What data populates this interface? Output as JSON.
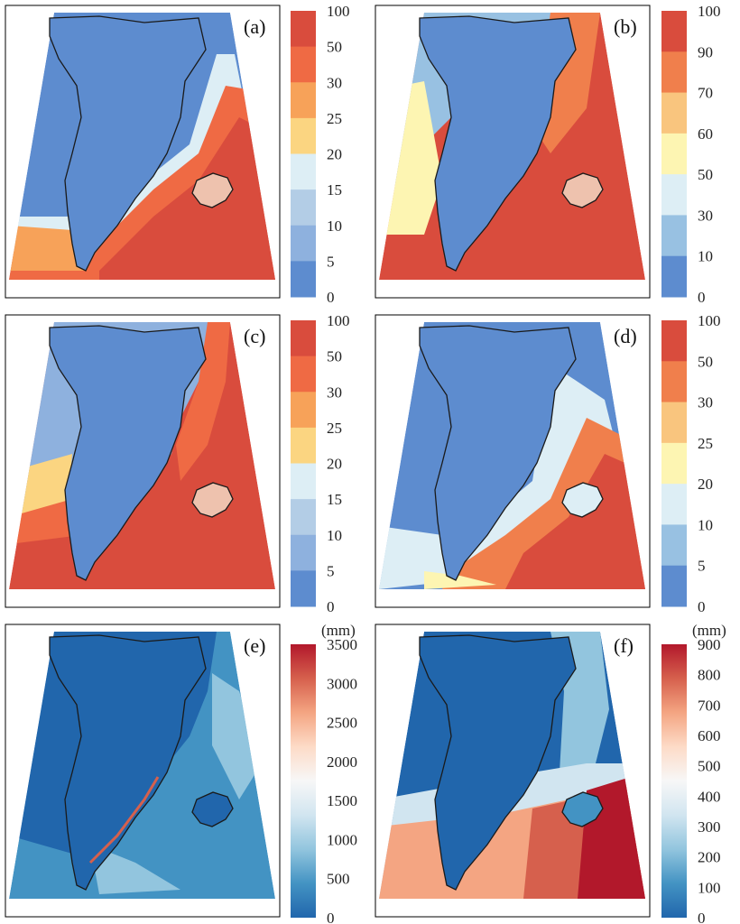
{
  "panels": [
    {
      "label": "(a)"
    },
    {
      "label": "(b)"
    },
    {
      "label": "(c)"
    },
    {
      "label": "(d)"
    },
    {
      "label": "(e)"
    },
    {
      "label": "(f)"
    }
  ],
  "colorbars": [
    {
      "ticks": [
        "100",
        "50",
        "30",
        "25",
        "20",
        "15",
        "10",
        "5",
        "0"
      ],
      "colors": [
        "#d94c3d",
        "#ef6a44",
        "#f7a259",
        "#fbd581",
        "#ddeef5",
        "#b3cde6",
        "#8eb1de",
        "#5d8ccf"
      ]
    },
    {
      "ticks": [
        "100",
        "90",
        "70",
        "60",
        "50",
        "30",
        "10",
        "0"
      ],
      "colors": [
        "#d94c3d",
        "#f07f4c",
        "#f9c57e",
        "#fdf5b2",
        "#ddeef5",
        "#98c1e2",
        "#5d8ccf"
      ]
    },
    {
      "ticks": [
        "100",
        "50",
        "30",
        "25",
        "20",
        "15",
        "10",
        "5",
        "0"
      ],
      "colors": [
        "#d94c3d",
        "#ef6a44",
        "#f7a259",
        "#fbd581",
        "#ddeef5",
        "#b3cde6",
        "#8eb1de",
        "#5d8ccf"
      ]
    },
    {
      "ticks": [
        "100",
        "50",
        "30",
        "25",
        "20",
        "10",
        "5",
        "0"
      ],
      "colors": [
        "#d94c3d",
        "#f07f4c",
        "#f9c57e",
        "#fdf5b2",
        "#ddeef5",
        "#98c1e2",
        "#5d8ccf"
      ]
    },
    {
      "unit": "(mm)",
      "ticks": [
        "3500",
        "3000",
        "2500",
        "2000",
        "1500",
        "1000",
        "500",
        "0"
      ],
      "gradient": [
        "#2166ac",
        "#4393c3",
        "#92c5de",
        "#d1e5f0",
        "#f7f7f7",
        "#fddbc7",
        "#f4a582",
        "#d6604d",
        "#b2182b"
      ]
    },
    {
      "unit": "(mm)",
      "ticks": [
        "900",
        "800",
        "700",
        "600",
        "500",
        "400",
        "300",
        "200",
        "100",
        "0"
      ],
      "gradient": [
        "#2166ac",
        "#4393c3",
        "#92c5de",
        "#d1e5f0",
        "#f7f7f7",
        "#fddbc7",
        "#f4a582",
        "#d6604d",
        "#b2182b"
      ]
    }
  ]
}
